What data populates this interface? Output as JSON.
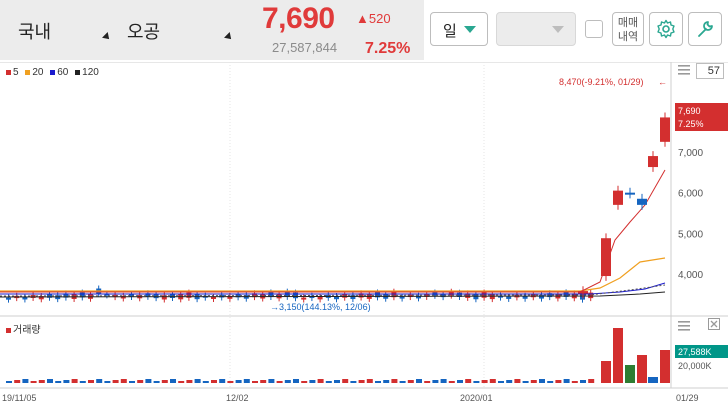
{
  "header": {
    "market": "국내",
    "stock": "오공",
    "price": "7,690",
    "change": "▲520",
    "volume": "27,587,844",
    "rate": "7.25%"
  },
  "toolbar": {
    "period": "일",
    "trade_line1": "매매",
    "trade_line2": "내역",
    "zoom_value": "57"
  },
  "legend": {
    "ma": [
      {
        "label": "5",
        "color": "#d32f2f"
      },
      {
        "label": "20",
        "color": "#f0a020"
      },
      {
        "label": "60",
        "color": "#1a1acd"
      },
      {
        "label": "120",
        "color": "#222222"
      }
    ],
    "volume_label": "거래량"
  },
  "annotations": {
    "high": "8,470(-9.21%, 01/29)",
    "low": "3,150(144.13%, 12/06)",
    "price_tag": "7,690",
    "rate_tag": "7.25%",
    "volume_tag": "27,588K"
  },
  "chart_data": {
    "type": "candlestick",
    "y_ticks": [
      "7,000",
      "6,000",
      "5,000",
      "4,000"
    ],
    "volume_ticks": [
      "20,000K"
    ],
    "x_ticks": [
      "19/11/05",
      "12/02",
      "2020/01",
      "01/29"
    ],
    "last_close": 7690,
    "high_marker": 8470,
    "low_marker": 3150
  }
}
